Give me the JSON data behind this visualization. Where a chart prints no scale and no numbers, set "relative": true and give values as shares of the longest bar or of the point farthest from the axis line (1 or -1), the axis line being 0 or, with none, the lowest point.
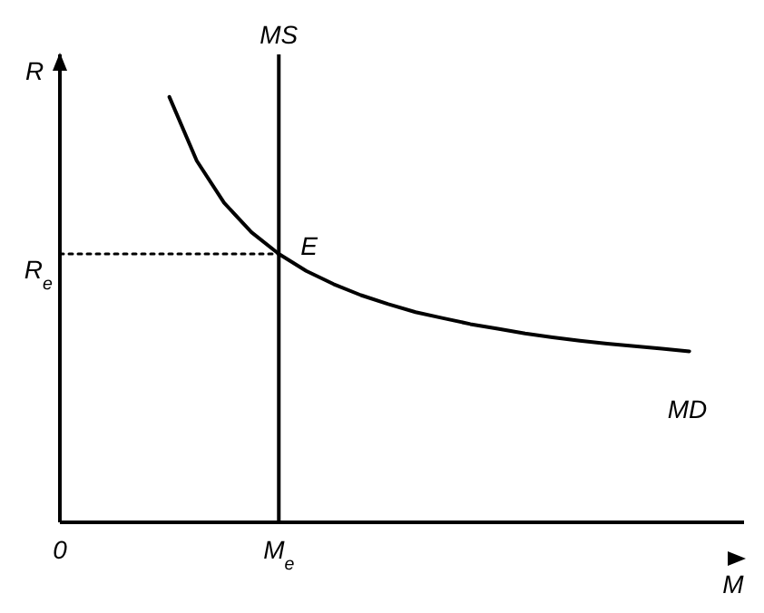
{
  "chart_data": {
    "type": "line",
    "relative": true,
    "xlabel": "M",
    "ylabel": "R",
    "tick_labels": "x",
    "legend": false,
    "marker": "none",
    "categories": [
      "0",
      null,
      null,
      null,
      null,
      null,
      null,
      null,
      "M$_{e}$",
      null,
      null,
      null,
      null,
      null,
      null,
      null,
      null,
      null,
      null,
      null,
      null,
      null,
      null,
      null,
      null,
      null
    ],
    "series": [
      {
        "name": "MD",
        "color": "#000000",
        "line_style": "solid",
        "values": [
          null,
          null,
          null,
          null,
          1.0,
          0.85,
          0.751,
          0.682,
          0.631,
          0.591,
          0.56,
          0.534,
          0.513,
          0.494,
          0.48,
          0.466,
          0.455,
          0.444,
          0.435,
          0.427,
          0.42,
          0.414,
          0.408,
          0.402,
          null,
          null
        ]
      },
      {
        "name": "R$_{e}$",
        "color": "#000000",
        "line_style": "dotted",
        "values": [
          0.631,
          0.631,
          0.631,
          0.631,
          0.631,
          0.631,
          0.631,
          0.631,
          0.631,
          null,
          null,
          null,
          null,
          null,
          null,
          null,
          null,
          null,
          null,
          null,
          null,
          null,
          null,
          null,
          null,
          null
        ]
      }
    ],
    "ref_lines": [
      {
        "axis": "x",
        "value": "M$_{e}$",
        "label": "MS",
        "color": "#000000",
        "line_style": "solid"
      }
    ],
    "annotations": [
      "E"
    ]
  }
}
